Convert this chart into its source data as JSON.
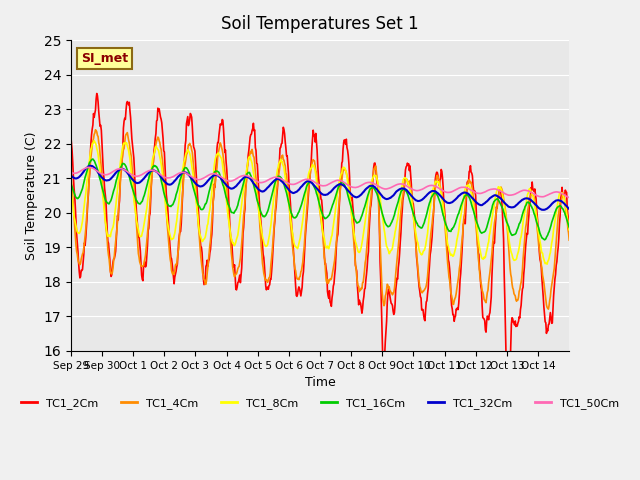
{
  "title": "Soil Temperatures Set 1",
  "xlabel": "Time",
  "ylabel": "Soil Temperature (C)",
  "ylim": [
    16.0,
    25.0
  ],
  "yticks": [
    16.0,
    17.0,
    18.0,
    19.0,
    20.0,
    21.0,
    22.0,
    23.0,
    24.0,
    25.0
  ],
  "xtick_labels": [
    "Sep 29",
    "Sep 30",
    "Oct 1",
    "Oct 2",
    "Oct 3",
    "Oct 4",
    "Oct 5",
    "Oct 6",
    "Oct 7",
    "Oct 8",
    "Oct 9",
    "Oct 10",
    "Oct 11",
    "Oct 12",
    "Oct 13",
    "Oct 14"
  ],
  "annotation_text": "SI_met",
  "annotation_color": "#8B0000",
  "annotation_bg": "#FFFF99",
  "plot_bg_color": "#E8E8E8",
  "fig_bg_color": "#F0F0F0",
  "series": [
    {
      "name": "TC1_2Cm",
      "color": "#FF0000",
      "lw": 1.2
    },
    {
      "name": "TC1_4Cm",
      "color": "#FF8C00",
      "lw": 1.2
    },
    {
      "name": "TC1_8Cm",
      "color": "#FFFF00",
      "lw": 1.2
    },
    {
      "name": "TC1_16Cm",
      "color": "#00CC00",
      "lw": 1.2
    },
    {
      "name": "TC1_32Cm",
      "color": "#0000CC",
      "lw": 1.5
    },
    {
      "name": "TC1_50Cm",
      "color": "#FF69B4",
      "lw": 1.2
    }
  ]
}
